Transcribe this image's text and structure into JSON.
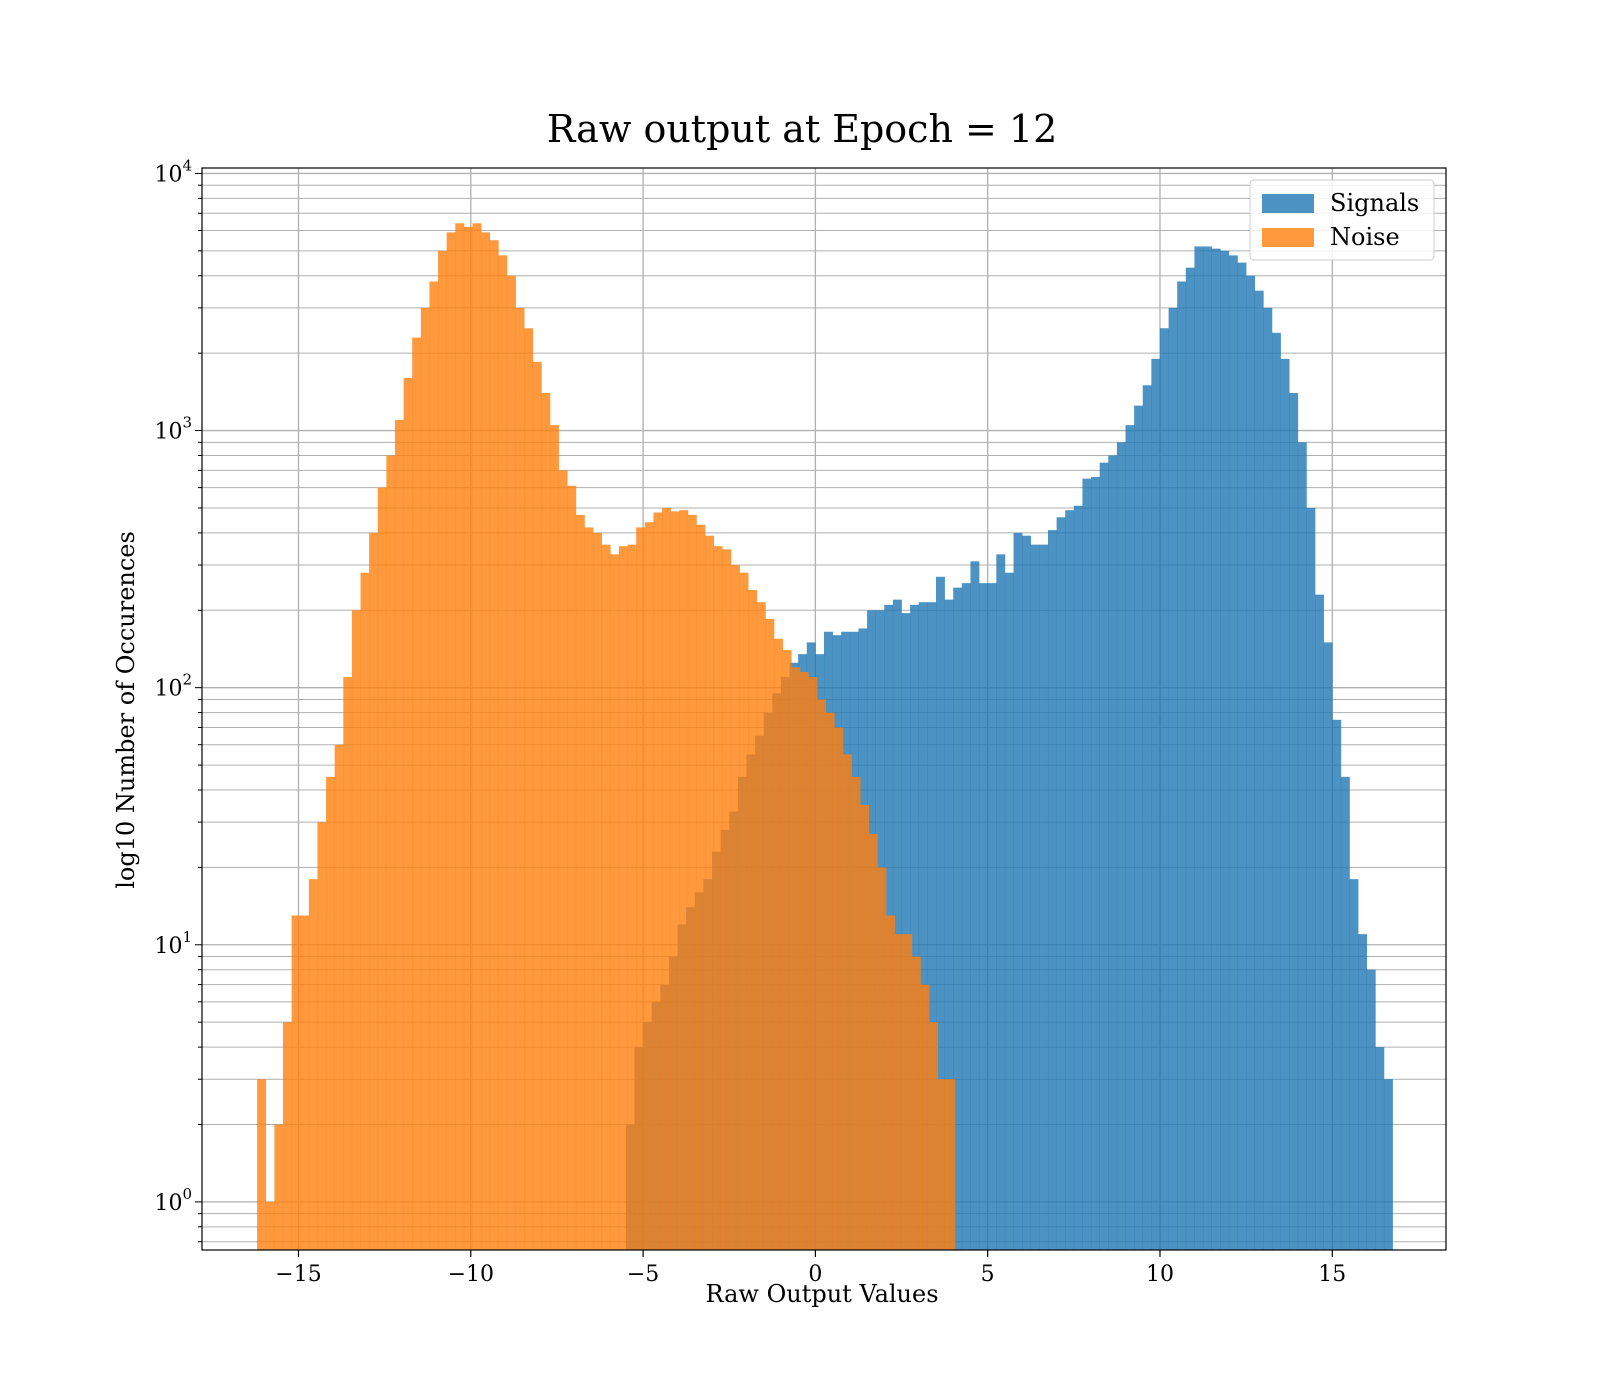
{
  "chart_data": {
    "type": "histogram",
    "title": "Raw output at Epoch = 12",
    "xlabel": "Raw Output Values",
    "ylabel": "log10 Number of Occurences",
    "xlim": [
      -17.8,
      18.3
    ],
    "ylim": [
      0.65,
      10500
    ],
    "yscale": "log",
    "grid": true,
    "legend_position": "top-right",
    "xticks": [
      {
        "value": -15,
        "label": "−15"
      },
      {
        "value": -10,
        "label": "−10"
      },
      {
        "value": -5,
        "label": "−5"
      },
      {
        "value": 0,
        "label": "0"
      },
      {
        "value": 5,
        "label": "5"
      },
      {
        "value": 10,
        "label": "10"
      },
      {
        "value": 15,
        "label": "15"
      }
    ],
    "yticks": [
      {
        "value": 1,
        "base": "10",
        "exp": "0"
      },
      {
        "value": 10,
        "base": "10",
        "exp": "1"
      },
      {
        "value": 100,
        "base": "10",
        "exp": "2"
      },
      {
        "value": 1000,
        "base": "10",
        "exp": "3"
      },
      {
        "value": 10000,
        "base": "10",
        "exp": "4"
      }
    ],
    "series": [
      {
        "name": "Signals",
        "color": "#1f77b4",
        "opacity": 0.8,
        "bin_start": -5.5,
        "bin_width": 0.25,
        "counts": [
          2,
          4,
          5,
          6,
          7,
          9,
          12,
          14,
          16,
          18,
          23,
          28,
          33,
          45,
          55,
          65,
          80,
          95,
          110,
          125,
          135,
          150,
          135,
          165,
          160,
          165,
          165,
          170,
          200,
          200,
          210,
          220,
          195,
          210,
          215,
          215,
          270,
          220,
          245,
          255,
          310,
          255,
          255,
          330,
          280,
          400,
          390,
          360,
          360,
          410,
          460,
          490,
          510,
          650,
          660,
          750,
          800,
          900,
          1050,
          1250,
          1500,
          1900,
          2500,
          3000,
          3800,
          4300,
          5200,
          5200,
          5100,
          5000,
          4800,
          4500,
          4000,
          3500,
          3000,
          2400,
          1900,
          1400,
          900,
          500,
          230,
          150,
          75,
          45,
          18,
          11,
          8,
          4,
          3
        ]
      },
      {
        "name": "Noise",
        "color": "#ff7f0e",
        "opacity": 0.8,
        "bin_start": -16.2,
        "bin_width": 0.25,
        "counts": [
          3,
          1,
          2,
          5,
          13,
          13,
          18,
          30,
          45,
          60,
          110,
          200,
          280,
          400,
          600,
          800,
          1100,
          1600,
          2300,
          3000,
          3800,
          5000,
          5900,
          6400,
          6200,
          6400,
          5900,
          5500,
          4800,
          4000,
          3000,
          2500,
          1850,
          1400,
          1050,
          700,
          610,
          470,
          420,
          400,
          360,
          330,
          355,
          360,
          420,
          440,
          480,
          500,
          485,
          490,
          470,
          430,
          390,
          355,
          345,
          300,
          280,
          240,
          215,
          185,
          155,
          140,
          120,
          115,
          110,
          90,
          80,
          70,
          55,
          45,
          35,
          27,
          20,
          13,
          11,
          11,
          9,
          7,
          5,
          3,
          3
        ]
      }
    ]
  }
}
